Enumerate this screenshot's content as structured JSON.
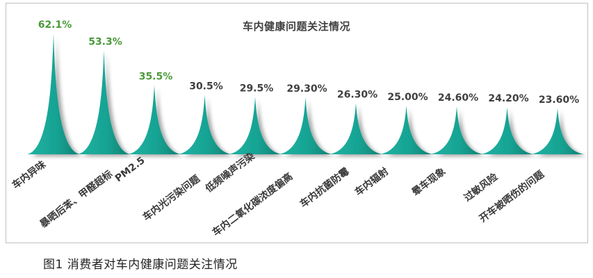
{
  "chart_data": {
    "type": "bar",
    "title": "车内健康问题关注情况",
    "categories": [
      "车内异味",
      "暴晒后苯、甲醛超标",
      "PM2.5",
      "车内光污染问题",
      "低频噪声污染",
      "车内二氧化碳浓度偏高",
      "车内抗菌防霉",
      "车内辐射",
      "晕车现象",
      "过敏风险",
      "开车被晒伤的问题"
    ],
    "values": [
      62.1,
      53.3,
      35.5,
      30.5,
      29.5,
      29.3,
      26.3,
      25.0,
      24.6,
      24.2,
      23.6
    ],
    "value_labels": [
      "62.1%",
      "53.3%",
      "35.5%",
      "30.5%",
      "29.5%",
      "29.30%",
      "26.30%",
      "25.00%",
      "24.60%",
      "24.20%",
      "23.60%"
    ],
    "highlight_count": 3,
    "colors": {
      "bar": "#1aa596",
      "bar_shade": "#0e7d70",
      "highlight_label": "#4a9a3a",
      "normal_label": "#404040"
    },
    "grid": false,
    "legend": "none"
  },
  "caption": "图1 消费者对车内健康问题关注情况"
}
